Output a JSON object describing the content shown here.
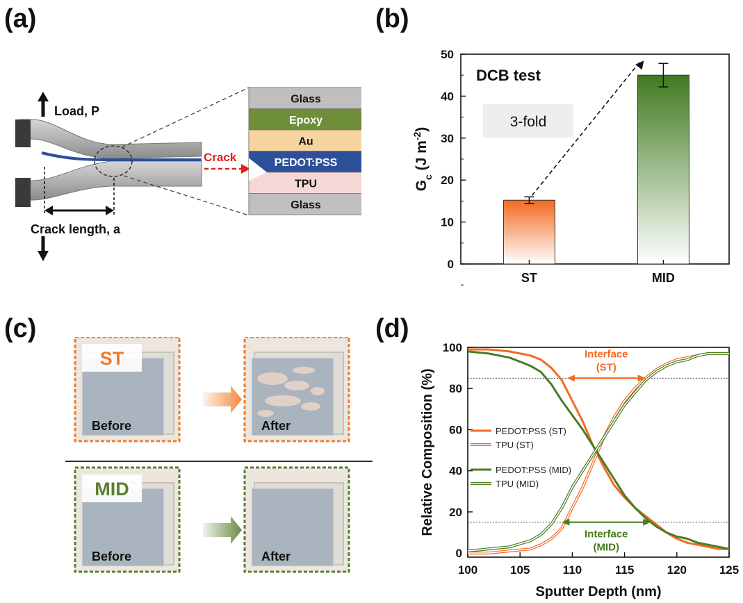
{
  "panels": {
    "a": "(a)",
    "b": "(b)",
    "c": "(c)",
    "d": "(d)"
  },
  "panel_a": {
    "load_label": "Load, P",
    "crack_label": "Crack",
    "crack_length_label": "Crack length, a",
    "layers": [
      {
        "name": "Glass",
        "color": "#bfbfbf"
      },
      {
        "name": "Epoxy",
        "color": "#6f8e3a"
      },
      {
        "name": "Au",
        "color": "#f6d4a0"
      },
      {
        "name": "PEDOT:PSS",
        "color": "#2e4f9a"
      },
      {
        "name": "TPU",
        "color": "#f5d8d6"
      },
      {
        "name": "Glass",
        "color": "#bfbfbf"
      }
    ]
  },
  "panel_b": {
    "annotation_title": "DCB test",
    "annotation_fold": "3-fold",
    "chart_data": {
      "type": "bar",
      "categories": [
        "ST",
        "MID"
      ],
      "values": [
        15.2,
        45.0
      ],
      "errors": [
        0.8,
        2.8
      ],
      "ylabel_main": "G",
      "ylabel_sub": "c",
      "ylabel_unit": " (J m",
      "ylabel_exp": "-2",
      "ylabel_close": ")",
      "ylim": [
        0,
        50
      ],
      "yticks": [
        0,
        10,
        20,
        30,
        40,
        50
      ],
      "colors": {
        "ST": "#f26a21",
        "MID": "#3f7a1e"
      }
    }
  },
  "panel_c": {
    "rows": [
      {
        "label": "ST",
        "color": "#f07c2a",
        "before": "Before",
        "after": "After"
      },
      {
        "label": "MID",
        "color": "#5a7f2e",
        "before": "Before",
        "after": "After"
      }
    ]
  },
  "panel_d": {
    "chart_data": {
      "type": "line",
      "xlabel": "Sputter Depth (nm)",
      "ylabel": "Relative Composition (%)",
      "xlim": [
        100,
        125
      ],
      "ylim": [
        -2,
        100
      ],
      "xticks": [
        100,
        105,
        110,
        115,
        120,
        125
      ],
      "yticks": [
        0,
        20,
        40,
        60,
        80,
        100
      ],
      "reference_lines": [
        85,
        15
      ],
      "series": [
        {
          "name": "PEDOT:PSS (ST)",
          "color": "#f26a21",
          "style": "solid",
          "x": [
            100,
            102,
            104,
            106,
            107,
            108,
            109,
            110,
            111,
            112,
            113,
            114,
            115,
            116,
            117,
            118,
            119,
            120,
            121,
            122,
            123,
            124,
            125
          ],
          "y": [
            99,
            99,
            98,
            96,
            94,
            90,
            84,
            74,
            64,
            52,
            42,
            33,
            27,
            22,
            18,
            14,
            10,
            7,
            5,
            4,
            3,
            2,
            2
          ]
        },
        {
          "name": "TPU (ST)",
          "color": "#f26a21",
          "style": "hollow",
          "x": [
            100,
            102,
            104,
            106,
            107,
            108,
            109,
            110,
            111,
            112,
            113,
            114,
            115,
            116,
            117,
            118,
            119,
            120,
            121,
            122,
            123,
            124,
            125
          ],
          "y": [
            0,
            0,
            1,
            2,
            4,
            7,
            12,
            22,
            32,
            44,
            56,
            66,
            74,
            80,
            85,
            89,
            92,
            94,
            95,
            96,
            97,
            97,
            97
          ]
        },
        {
          "name": "PEDOT:PSS (MID)",
          "color": "#4a7c22",
          "style": "solid",
          "x": [
            100,
            102,
            104,
            106,
            107,
            108,
            109,
            110,
            111,
            112,
            113,
            114,
            115,
            116,
            117,
            118,
            119,
            120,
            121,
            122,
            123,
            124,
            125
          ],
          "y": [
            98,
            97,
            95,
            91,
            88,
            82,
            74,
            67,
            60,
            52,
            44,
            36,
            28,
            22,
            17,
            13,
            10,
            8,
            7,
            5,
            4,
            3,
            2
          ]
        },
        {
          "name": "TPU (MID)",
          "color": "#4a7c22",
          "style": "hollow",
          "x": [
            100,
            102,
            104,
            106,
            107,
            108,
            109,
            110,
            111,
            112,
            113,
            114,
            115,
            116,
            117,
            118,
            119,
            120,
            121,
            122,
            123,
            124,
            125
          ],
          "y": [
            1,
            2,
            3,
            6,
            9,
            14,
            22,
            32,
            40,
            48,
            56,
            64,
            72,
            78,
            84,
            88,
            91,
            93,
            94,
            96,
            97,
            97,
            97
          ]
        }
      ],
      "annotations": [
        {
          "text1": "Interface",
          "text2": "(ST)",
          "color": "#f26a21",
          "y": 85,
          "x_from": 109.5,
          "x_to": 117
        },
        {
          "text1": "Interface",
          "text2": "(MID)",
          "color": "#4a7c22",
          "y": 15,
          "x_from": 109,
          "x_to": 117.5
        }
      ]
    }
  }
}
